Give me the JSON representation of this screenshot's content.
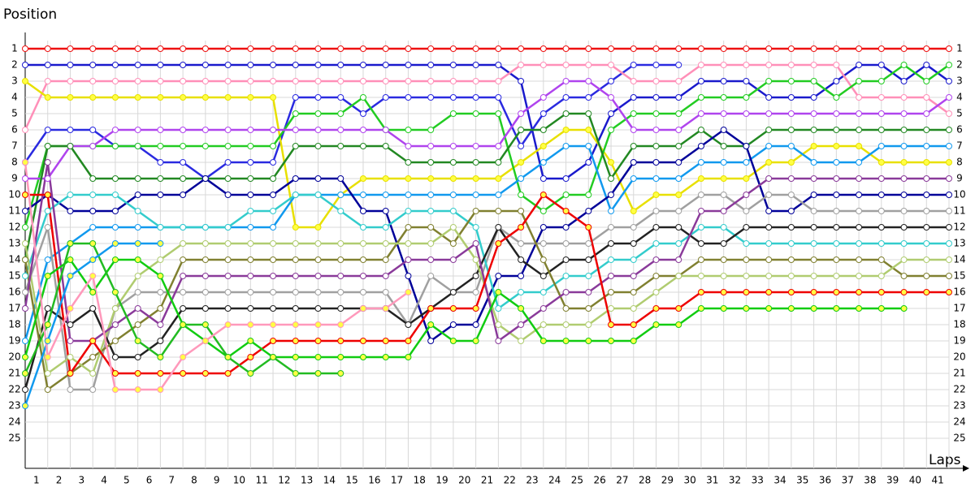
{
  "chart_data": {
    "type": "line",
    "y_label": "Position",
    "x_label": "Laps",
    "x": [
      0,
      1,
      2,
      3,
      4,
      5,
      6,
      7,
      8,
      9,
      10,
      11,
      12,
      13,
      14,
      15,
      16,
      17,
      18,
      19,
      20,
      21,
      22,
      23,
      24,
      25,
      26,
      27,
      28,
      29,
      30,
      31,
      32,
      33,
      34,
      35,
      36,
      37,
      38,
      39,
      40,
      41
    ],
    "xlim": [
      0,
      41
    ],
    "xticks": [
      1,
      2,
      3,
      4,
      5,
      6,
      7,
      8,
      9,
      10,
      11,
      12,
      13,
      14,
      15,
      16,
      17,
      18,
      19,
      20,
      21,
      22,
      23,
      24,
      25,
      26,
      27,
      28,
      29,
      30,
      31,
      32,
      33,
      34,
      35,
      36,
      37,
      38,
      39,
      40,
      41
    ],
    "ylim": [
      27,
      0
    ],
    "yticks": [
      1,
      2,
      3,
      4,
      5,
      6,
      7,
      8,
      9,
      10,
      11,
      12,
      13,
      14,
      15,
      16,
      17,
      18,
      19,
      20,
      21,
      22,
      23,
      24,
      25
    ],
    "grid": true,
    "series": [
      {
        "color": "#ee1111",
        "marker": "#ffffff",
        "values": [
          1,
          1,
          1,
          1,
          1,
          1,
          1,
          1,
          1,
          1,
          1,
          1,
          1,
          1,
          1,
          1,
          1,
          1,
          1,
          1,
          1,
          1,
          1,
          1,
          1,
          1,
          1,
          1,
          1,
          1,
          1,
          1,
          1,
          1,
          1,
          1,
          1,
          1,
          1,
          1,
          1,
          1
        ]
      },
      {
        "color": "#1a1acc",
        "marker": "#ffffff",
        "values": [
          2,
          2,
          2,
          2,
          2,
          2,
          2,
          2,
          2,
          2,
          2,
          2,
          2,
          2,
          2,
          2,
          2,
          2,
          2,
          2,
          2,
          2,
          3,
          9,
          9,
          8,
          5,
          4,
          4,
          4,
          3,
          3,
          3,
          4,
          4,
          4,
          3,
          2,
          2,
          3,
          2,
          3
        ]
      },
      {
        "color": "#2a2ae0",
        "marker": "#ffffff",
        "values": [
          8,
          6,
          6,
          6,
          7,
          7,
          8,
          8,
          9,
          8,
          8,
          8,
          4,
          4,
          4,
          5,
          4,
          4,
          4,
          4,
          4,
          4,
          7,
          5,
          4,
          4,
          3,
          2,
          2,
          2,
          null,
          null,
          null,
          null,
          null,
          null,
          null,
          null,
          null,
          null,
          null,
          null
        ]
      },
      {
        "color": "#ff8fb8",
        "marker": "#ffffff",
        "values": [
          6,
          3,
          3,
          3,
          3,
          3,
          3,
          3,
          3,
          3,
          3,
          3,
          3,
          3,
          3,
          3,
          3,
          3,
          3,
          3,
          3,
          3,
          2,
          2,
          2,
          2,
          2,
          3,
          3,
          3,
          2,
          2,
          2,
          2,
          2,
          2,
          2,
          4,
          4,
          4,
          4,
          5
        ]
      },
      {
        "color": "#e8e000",
        "marker": "#ffff44",
        "values": [
          3,
          4,
          4,
          4,
          4,
          4,
          4,
          4,
          4,
          4,
          4,
          4,
          12,
          12,
          10,
          9,
          9,
          9,
          9,
          9,
          9,
          9,
          8,
          7,
          6,
          6,
          8,
          11,
          10,
          10,
          9,
          9,
          9,
          8,
          8,
          7,
          7,
          7,
          8,
          8,
          8,
          8
        ]
      },
      {
        "color": "#22cc22",
        "marker": "#ffffff",
        "values": [
          12,
          7,
          7,
          7,
          7,
          7,
          7,
          7,
          7,
          7,
          7,
          7,
          5,
          5,
          5,
          4,
          6,
          6,
          6,
          5,
          5,
          5,
          10,
          11,
          10,
          10,
          6,
          5,
          5,
          5,
          4,
          4,
          4,
          3,
          3,
          3,
          4,
          3,
          3,
          2,
          3,
          2
        ]
      },
      {
        "color": "#b044ee",
        "marker": "#ffffff",
        "values": [
          9,
          9,
          7,
          7,
          6,
          6,
          6,
          6,
          6,
          6,
          6,
          6,
          6,
          6,
          6,
          6,
          6,
          7,
          7,
          7,
          7,
          7,
          5,
          4,
          3,
          3,
          4,
          6,
          6,
          6,
          5,
          5,
          5,
          5,
          5,
          5,
          5,
          5,
          5,
          5,
          5,
          4
        ]
      },
      {
        "color": "#228822",
        "marker": "#ffffff",
        "values": [
          14,
          7,
          7,
          9,
          9,
          9,
          9,
          9,
          9,
          9,
          9,
          9,
          7,
          7,
          7,
          7,
          7,
          8,
          8,
          8,
          8,
          8,
          6,
          6,
          5,
          5,
          9,
          7,
          7,
          7,
          6,
          7,
          7,
          6,
          6,
          6,
          6,
          6,
          6,
          6,
          6,
          6
        ]
      },
      {
        "color": "#1199ee",
        "marker": "#ffffff",
        "values": [
          19,
          14,
          13,
          12,
          12,
          12,
          12,
          12,
          12,
          12,
          12,
          12,
          10,
          10,
          10,
          10,
          10,
          10,
          10,
          10,
          10,
          10,
          9,
          8,
          7,
          7,
          11,
          9,
          9,
          9,
          8,
          8,
          8,
          7,
          7,
          8,
          8,
          8,
          7,
          7,
          7,
          7
        ]
      },
      {
        "color": "#000099",
        "marker": "#ffffff",
        "values": [
          11,
          10,
          11,
          11,
          11,
          10,
          10,
          10,
          9,
          10,
          10,
          10,
          9,
          9,
          9,
          11,
          11,
          15,
          19,
          18,
          18,
          15,
          15,
          12,
          12,
          11,
          10,
          8,
          8,
          8,
          7,
          6,
          7,
          11,
          11,
          10,
          10,
          10,
          10,
          10,
          10,
          10
        ]
      },
      {
        "color": "#a0a0a0",
        "marker": "#ffffff",
        "values": [
          16,
          12,
          22,
          22,
          17,
          16,
          16,
          16,
          16,
          16,
          16,
          16,
          16,
          16,
          16,
          16,
          16,
          18,
          15,
          16,
          16,
          12,
          13,
          13,
          13,
          13,
          12,
          12,
          11,
          11,
          10,
          10,
          11,
          10,
          10,
          11,
          11,
          11,
          11,
          11,
          11,
          11
        ]
      },
      {
        "color": "#33cccc",
        "marker": "#ffffff",
        "values": [
          15,
          11,
          10,
          10,
          10,
          11,
          12,
          12,
          12,
          12,
          11,
          11,
          10,
          10,
          11,
          12,
          12,
          11,
          11,
          11,
          12,
          17,
          16,
          16,
          15,
          15,
          14,
          14,
          13,
          13,
          12,
          12,
          13,
          13,
          13,
          13,
          13,
          13,
          13,
          13,
          13,
          13
        ]
      },
      {
        "color": "#222222",
        "marker": "#ffffff",
        "values": [
          22,
          17,
          18,
          17,
          20,
          20,
          19,
          17,
          17,
          17,
          17,
          17,
          17,
          17,
          17,
          17,
          17,
          18,
          17,
          16,
          15,
          12,
          14,
          15,
          14,
          14,
          13,
          13,
          12,
          12,
          13,
          13,
          12,
          12,
          12,
          12,
          12,
          12,
          12,
          12,
          12,
          12
        ]
      },
      {
        "color": "#808030",
        "marker": "#ffffff",
        "values": [
          14,
          22,
          21,
          20,
          19,
          18,
          17,
          14,
          14,
          14,
          14,
          14,
          14,
          14,
          14,
          14,
          14,
          12,
          12,
          13,
          11,
          11,
          11,
          14,
          17,
          17,
          16,
          16,
          15,
          15,
          14,
          14,
          14,
          14,
          14,
          14,
          14,
          14,
          14,
          15,
          15,
          15
        ]
      },
      {
        "color": "#b0cc70",
        "marker": "#ffffff",
        "values": [
          13,
          21,
          20,
          21,
          17,
          15,
          14,
          13,
          13,
          13,
          13,
          13,
          13,
          13,
          13,
          13,
          13,
          13,
          13,
          12,
          14,
          18,
          19,
          18,
          18,
          18,
          17,
          17,
          16,
          15,
          15,
          15,
          15,
          15,
          15,
          15,
          15,
          15,
          15,
          14,
          14,
          14
        ]
      },
      {
        "color": "#8a3a9a",
        "marker": "#ffffff",
        "values": [
          17,
          8,
          19,
          19,
          18,
          17,
          18,
          15,
          15,
          15,
          15,
          15,
          15,
          15,
          15,
          15,
          15,
          14,
          14,
          14,
          13,
          19,
          18,
          17,
          16,
          16,
          15,
          15,
          14,
          14,
          11,
          11,
          10,
          9,
          9,
          9,
          9,
          9,
          9,
          9,
          9,
          9
        ]
      },
      {
        "color": "#ee0000",
        "marker": "#ffff44",
        "values": [
          10,
          10,
          21,
          19,
          21,
          21,
          21,
          21,
          21,
          21,
          20,
          19,
          19,
          19,
          19,
          19,
          19,
          19,
          17,
          17,
          17,
          13,
          12,
          10,
          11,
          12,
          18,
          18,
          17,
          17,
          16,
          16,
          16,
          16,
          16,
          16,
          16,
          16,
          16,
          16,
          16,
          16
        ]
      },
      {
        "color": "#11cc11",
        "marker": "#ffff44",
        "values": [
          20,
          15,
          14,
          16,
          14,
          14,
          15,
          18,
          19,
          20,
          19,
          20,
          20,
          20,
          20,
          20,
          20,
          20,
          18,
          19,
          19,
          16,
          17,
          19,
          19,
          19,
          19,
          19,
          18,
          18,
          17,
          17,
          17,
          17,
          17,
          17,
          17,
          17,
          17,
          17,
          null,
          null
        ]
      },
      {
        "color": "#22bb22",
        "marker": "#ffff44",
        "values": [
          21,
          18,
          13,
          13,
          16,
          19,
          20,
          18,
          18,
          20,
          21,
          20,
          21,
          21,
          21,
          null,
          null,
          null,
          null,
          null,
          null,
          null,
          null,
          null,
          null,
          null,
          null,
          null,
          null,
          null,
          null,
          null,
          null,
          null,
          null,
          null,
          null,
          null,
          null,
          null,
          null,
          null
        ]
      },
      {
        "color": "#1199ee",
        "marker": "#ffff44",
        "values": [
          23,
          19,
          15,
          14,
          13,
          13,
          13,
          null,
          null,
          null,
          null,
          null,
          null,
          null,
          null,
          null,
          null,
          null,
          null,
          null,
          null,
          null,
          null,
          null,
          null,
          null,
          null,
          null,
          null,
          null,
          null,
          null,
          null,
          null,
          null,
          null,
          null,
          null,
          null,
          null,
          null,
          null
        ]
      },
      {
        "color": "#ff99bb",
        "marker": "#ffff44",
        "values": [
          8,
          20,
          17,
          15,
          22,
          22,
          22,
          20,
          19,
          18,
          18,
          18,
          18,
          18,
          18,
          17,
          17,
          16,
          null,
          null,
          null,
          null,
          null,
          null,
          null,
          null,
          null,
          null,
          null,
          null,
          null,
          null,
          null,
          null,
          null,
          null,
          null,
          null,
          null,
          null,
          null,
          null
        ]
      }
    ]
  }
}
